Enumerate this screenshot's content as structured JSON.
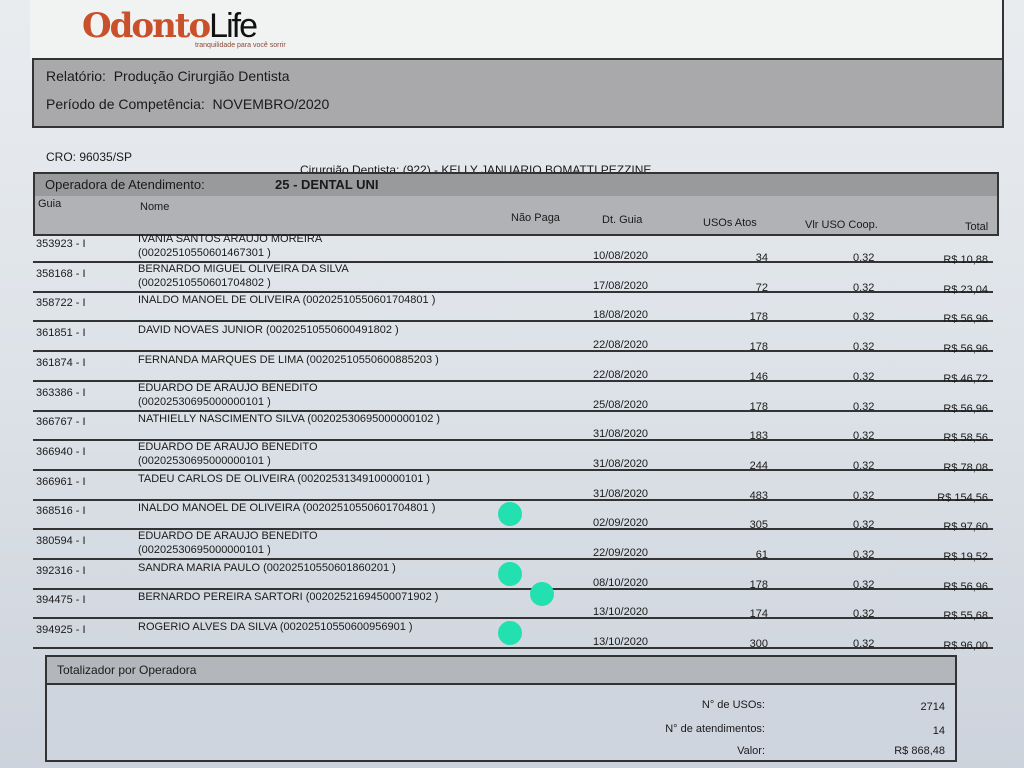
{
  "logo": {
    "brand_a": "Odonto",
    "brand_b": "Life",
    "tagline": "tranquilidade para você sorrir"
  },
  "header": {
    "report_label": "Relatório:",
    "report": "Produção Cirurgião Dentista",
    "period_label": "Período de Competência:",
    "period": "NOVEMBRO/2020"
  },
  "cro": "CRO:  96035/SP",
  "dentist": "Cirurgião Dentista: (922) - KELLY JANUARIO BOMATTI PEZZINE",
  "operator": {
    "label": "Operadora de Atendimento:",
    "value": "25 - DENTAL UNI"
  },
  "columns": {
    "guia": "Guia",
    "nome": "Nome",
    "nao_paga": "Não Paga",
    "dt": "Dt. Guia",
    "usos": "USOs Atos",
    "vlr": "Vlr USO Coop.",
    "total": "Total"
  },
  "mark_color": "#22e0b0",
  "rows": [
    {
      "guia": "353923 - I",
      "nome": "IVANIA SANTOS ARAUJO MOREIRA",
      "cod": "(00202510550601467301 )",
      "dt": "10/08/2020",
      "usos": "34",
      "vlr": "0.32",
      "total": "R$ 10,88",
      "marked": false
    },
    {
      "guia": "358168 - I",
      "nome": "BERNARDO MIGUEL OLIVEIRA DA SILVA",
      "cod": "(00202510550601704802 )",
      "dt": "17/08/2020",
      "usos": "72",
      "vlr": "0.32",
      "total": "R$ 23,04",
      "marked": false
    },
    {
      "guia": "358722 - I",
      "nome": "INALDO MANOEL DE OLIVEIRA (00202510550601704801 )",
      "cod": "",
      "dt": "18/08/2020",
      "usos": "178",
      "vlr": "0.32",
      "total": "R$ 56,96",
      "marked": false
    },
    {
      "guia": "361851 - I",
      "nome": "DAVID NOVAES JUNIOR (00202510550600491802 )",
      "cod": "",
      "dt": "22/08/2020",
      "usos": "178",
      "vlr": "0.32",
      "total": "R$ 56,96",
      "marked": false
    },
    {
      "guia": "361874 - I",
      "nome": "FERNANDA MARQUES DE LIMA (00202510550600885203 )",
      "cod": "",
      "dt": "22/08/2020",
      "usos": "146",
      "vlr": "0.32",
      "total": "R$ 46,72",
      "marked": false
    },
    {
      "guia": "363386 - I",
      "nome": "EDUARDO DE ARAUJO BENEDITO",
      "cod": "(00202530695000000101 )",
      "dt": "25/08/2020",
      "usos": "178",
      "vlr": "0.32",
      "total": "R$ 56,96",
      "marked": false
    },
    {
      "guia": "366767 - I",
      "nome": "NATHIELLY NASCIMENTO SILVA (00202530695000000102 )",
      "cod": "",
      "dt": "31/08/2020",
      "usos": "183",
      "vlr": "0.32",
      "total": "R$ 58,56",
      "marked": false
    },
    {
      "guia": "366940 - I",
      "nome": "EDUARDO DE ARAUJO BENEDITO",
      "cod": "(00202530695000000101 )",
      "dt": "31/08/2020",
      "usos": "244",
      "vlr": "0.32",
      "total": "R$ 78,08",
      "marked": false
    },
    {
      "guia": "366961 - I",
      "nome": "TADEU CARLOS DE OLIVEIRA (00202531349100000101 )",
      "cod": "",
      "dt": "31/08/2020",
      "usos": "483",
      "vlr": "0.32",
      "total": "R$ 154,56",
      "marked": false
    },
    {
      "guia": "368516 - I",
      "nome": "INALDO MANOEL DE OLIVEIRA (00202510550601704801 )",
      "cod": "",
      "dt": "02/09/2020",
      "usos": "305",
      "vlr": "0.32",
      "total": "R$ 97,60",
      "marked": true
    },
    {
      "guia": "380594 - I",
      "nome": "EDUARDO DE ARAUJO BENEDITO",
      "cod": "(00202530695000000101 )",
      "dt": "22/09/2020",
      "usos": "61",
      "vlr": "0.32",
      "total": "R$ 19,52",
      "marked": false
    },
    {
      "guia": "392316 - I",
      "nome": "SANDRA MARIA PAULO (00202510550601860201 )",
      "cod": "",
      "dt": "08/10/2020",
      "usos": "178",
      "vlr": "0.32",
      "total": "R$ 56,96",
      "marked": true
    },
    {
      "guia": "394475 - I",
      "nome": "BERNARDO PEREIRA SARTORI (00202521694500071902 )",
      "cod": "",
      "dt": "13/10/2020",
      "usos": "174",
      "vlr": "0.32",
      "total": "R$ 55,68",
      "marked": true
    },
    {
      "guia": "394925 - I",
      "nome": "ROGERIO ALVES DA SILVA (00202510550600956901 )",
      "cod": "",
      "dt": "13/10/2020",
      "usos": "300",
      "vlr": "0.32",
      "total": "R$ 96,00",
      "marked": true
    }
  ],
  "totals": {
    "title": "Totalizador por Operadora",
    "usos_label": "N° de USOs:",
    "usos": "2714",
    "atend_label": "N° de atendimentos:",
    "atend": "14",
    "valor_label": "Valor:",
    "valor": "R$ 868,48"
  }
}
